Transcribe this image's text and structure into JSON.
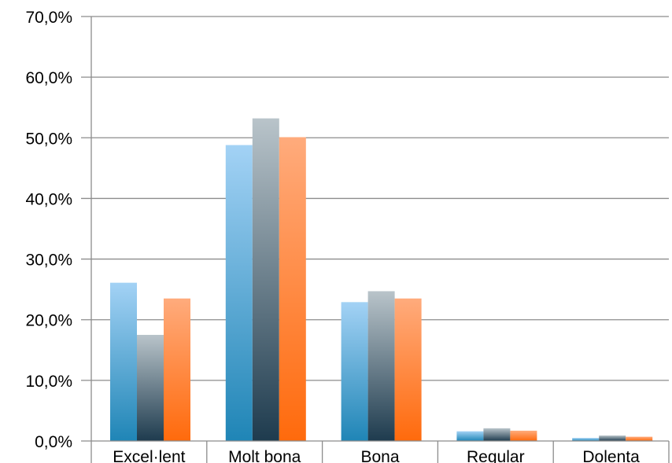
{
  "chart_data": {
    "type": "bar",
    "categories": [
      "Excel·lent",
      "Molt bona",
      "Bona",
      "Regular",
      "Dolenta"
    ],
    "series": [
      {
        "values": [
          26.1,
          48.8,
          22.9,
          1.6,
          0.5
        ],
        "color_top": "#a3d2f5",
        "color_bottom": "#1f85b6"
      },
      {
        "values": [
          17.5,
          53.2,
          24.7,
          2.1,
          0.9
        ],
        "color_top": "#b9c4ca",
        "color_bottom": "#1e3b4e"
      },
      {
        "values": [
          23.5,
          50.1,
          23.5,
          1.7,
          0.7
        ],
        "color_top": "#ffab7c",
        "color_bottom": "#ff6a0c"
      }
    ],
    "ylim": [
      0,
      70
    ],
    "yticks": [
      "0,0%",
      "10,0%",
      "20,0%",
      "30,0%",
      "40,0%",
      "50,0%",
      "60,0%",
      "70,0%"
    ],
    "ytick_values": [
      0,
      10,
      20,
      30,
      40,
      50,
      60,
      70
    ],
    "grid": true,
    "legend": "none"
  }
}
